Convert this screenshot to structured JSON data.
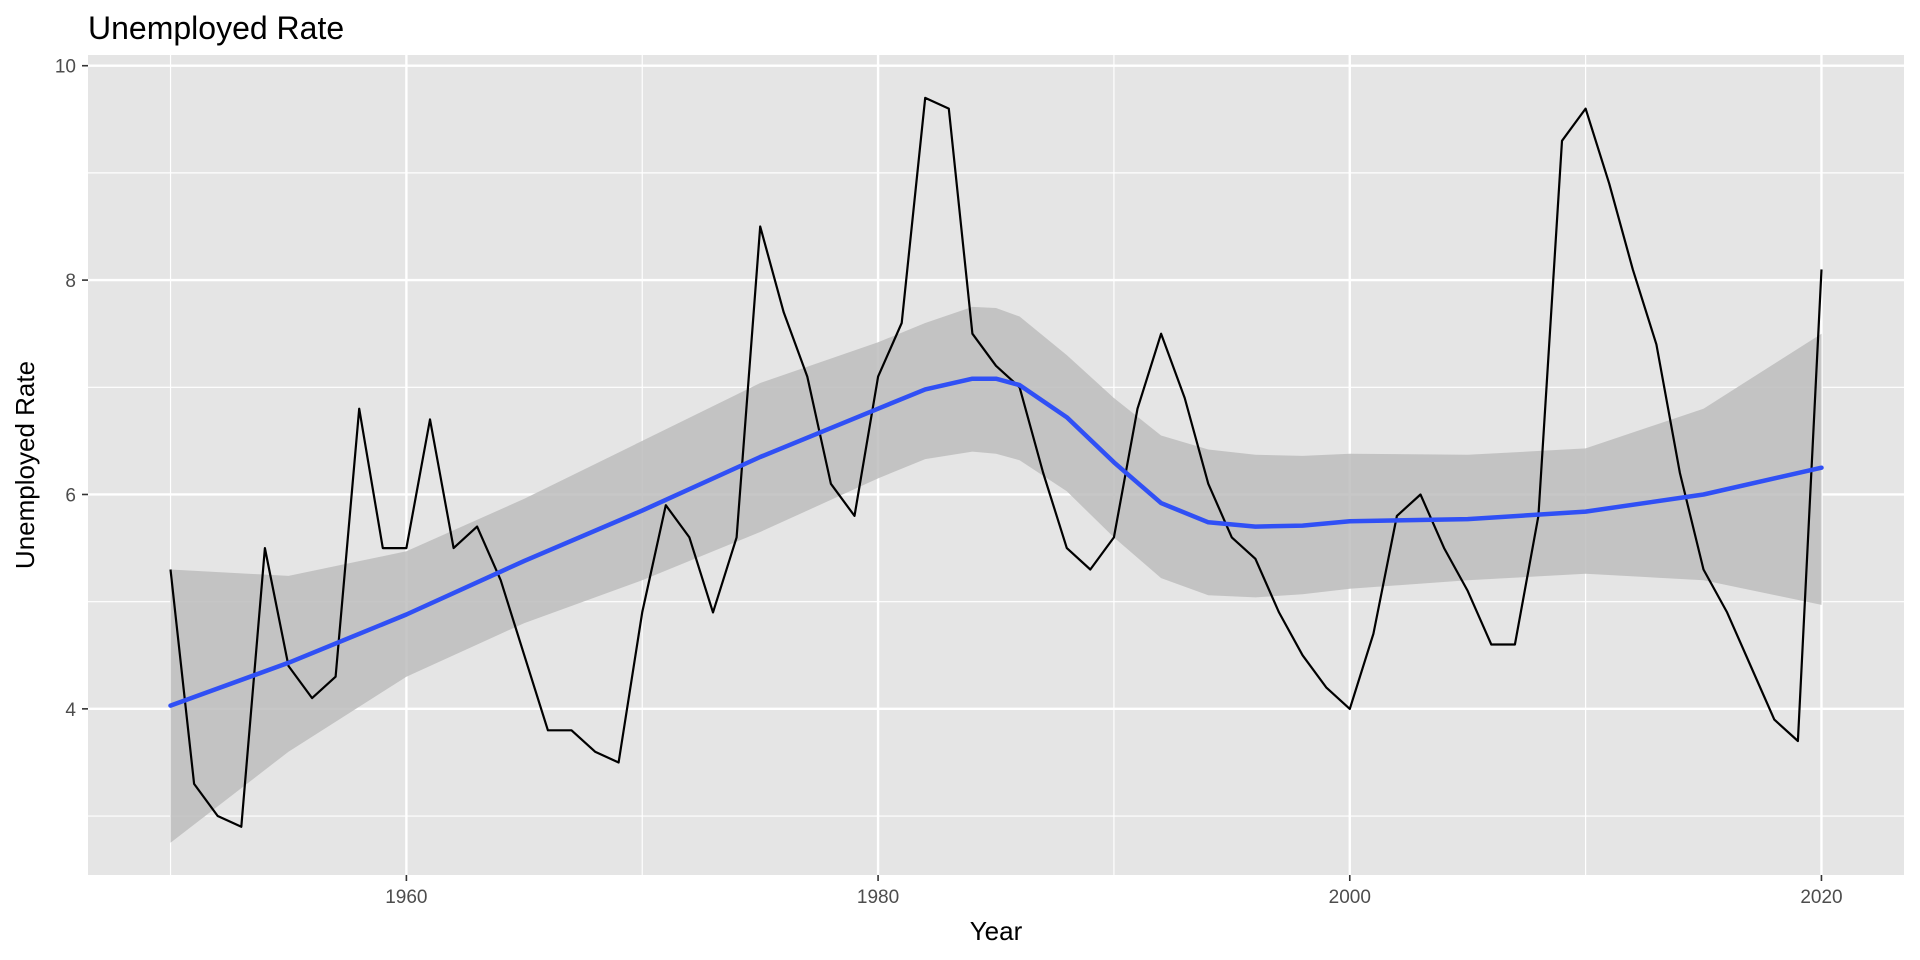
{
  "chart_data": {
    "type": "line",
    "title": "Unemployed Rate",
    "xlabel": "Year",
    "ylabel": "Unemployed Rate",
    "xlim": [
      1946.5,
      2023.5
    ],
    "ylim": [
      2.45,
      10.1
    ],
    "x_ticks": [
      1960,
      1980,
      2000,
      2020
    ],
    "y_ticks": [
      4,
      6,
      8,
      10
    ],
    "grid": true,
    "legend": "none",
    "colors": {
      "panel": "#e5e5e5",
      "grid": "#ffffff",
      "line": "#000000",
      "smooth": "#3050f5",
      "band": "#bdbdbd"
    },
    "series": [
      {
        "x": [
          1950,
          1951,
          1952,
          1953,
          1954,
          1955,
          1956,
          1957,
          1958,
          1959,
          1960,
          1961,
          1962,
          1963,
          1964,
          1965,
          1966,
          1967,
          1968,
          1969,
          1970,
          1971,
          1972,
          1973,
          1974,
          1975,
          1976,
          1977,
          1978,
          1979,
          1980,
          1981,
          1982,
          1983,
          1984,
          1985,
          1986,
          1987,
          1988,
          1989,
          1990,
          1991,
          1992,
          1993,
          1994,
          1995,
          1996,
          1997,
          1998,
          1999,
          2000,
          2001,
          2002,
          2003,
          2004,
          2005,
          2006,
          2007,
          2008,
          2009,
          2010,
          2011,
          2012,
          2013,
          2014,
          2015,
          2016,
          2017,
          2018,
          2019,
          2020
        ],
        "values": [
          5.3,
          3.3,
          3.0,
          2.9,
          5.5,
          4.4,
          4.1,
          4.3,
          6.8,
          5.5,
          5.5,
          6.7,
          5.5,
          5.7,
          5.2,
          4.5,
          3.8,
          3.8,
          3.6,
          3.5,
          4.9,
          5.9,
          5.6,
          4.9,
          5.6,
          8.5,
          7.7,
          7.1,
          6.1,
          5.8,
          7.1,
          7.6,
          9.7,
          9.6,
          7.5,
          7.2,
          7.0,
          6.2,
          5.5,
          5.3,
          5.6,
          6.8,
          7.5,
          6.9,
          6.1,
          5.6,
          5.4,
          4.9,
          4.5,
          4.2,
          4.0,
          4.7,
          5.8,
          6.0,
          5.5,
          5.1,
          4.6,
          4.6,
          5.8,
          9.3,
          9.6,
          8.9,
          8.1,
          7.4,
          6.2,
          5.3,
          4.9,
          4.4,
          3.9,
          3.7,
          8.1
        ]
      }
    ],
    "smooth": {
      "x": [
        1950,
        1955,
        1960,
        1965,
        1970,
        1975,
        1980,
        1982,
        1984,
        1985,
        1986,
        1988,
        1990,
        1992,
        1994,
        1996,
        1998,
        2000,
        2005,
        2010,
        2015,
        2020
      ],
      "fit": [
        4.03,
        4.43,
        4.88,
        5.38,
        5.85,
        6.35,
        6.8,
        6.98,
        7.08,
        7.08,
        7.02,
        6.72,
        6.3,
        5.92,
        5.74,
        5.7,
        5.71,
        5.75,
        5.77,
        5.84,
        6.0,
        6.25
      ],
      "lower": [
        2.75,
        3.6,
        4.3,
        4.8,
        5.2,
        5.65,
        6.15,
        6.33,
        6.4,
        6.38,
        6.32,
        6.03,
        5.6,
        5.22,
        5.06,
        5.04,
        5.07,
        5.12,
        5.2,
        5.26,
        5.2,
        4.97
      ],
      "upper": [
        5.3,
        5.24,
        5.47,
        5.96,
        6.5,
        7.04,
        7.42,
        7.6,
        7.75,
        7.74,
        7.66,
        7.3,
        6.9,
        6.55,
        6.42,
        6.37,
        6.36,
        6.38,
        6.37,
        6.43,
        6.8,
        7.5
      ]
    }
  }
}
